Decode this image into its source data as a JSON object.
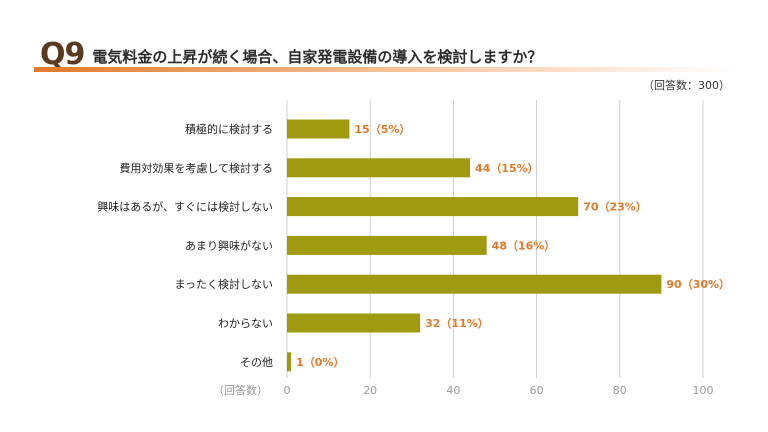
{
  "header": {
    "qnum": "Q9",
    "question": "電気料金の上昇が続く場合、自家発電設備の導入を検討しますか？",
    "respondents": "（回答数：300）"
  },
  "colors": {
    "bar": "#a09a10",
    "value_text": "#e07a2c",
    "grid": "#cfcfcf",
    "accent": "#e07a2c"
  },
  "chart_data": {
    "type": "bar",
    "orientation": "horizontal",
    "categories": [
      "積極的に検討する",
      "費用対効果を考慮して検討する",
      "興味はあるが、すぐには検討しない",
      "あまり興味がない",
      "まったく検討しない",
      "わからない",
      "その他"
    ],
    "values": [
      15,
      44,
      70,
      48,
      90,
      32,
      1
    ],
    "value_labels": [
      "15（5%）",
      "44（15%）",
      "70（23%）",
      "48（16%）",
      "90（30%）",
      "32（11%）",
      "1（0%）"
    ],
    "xlabel": "（回答数）",
    "xlim": [
      0,
      100
    ],
    "xticks": [
      "0",
      "20",
      "40",
      "60",
      "80",
      "100"
    ],
    "grid": true
  }
}
